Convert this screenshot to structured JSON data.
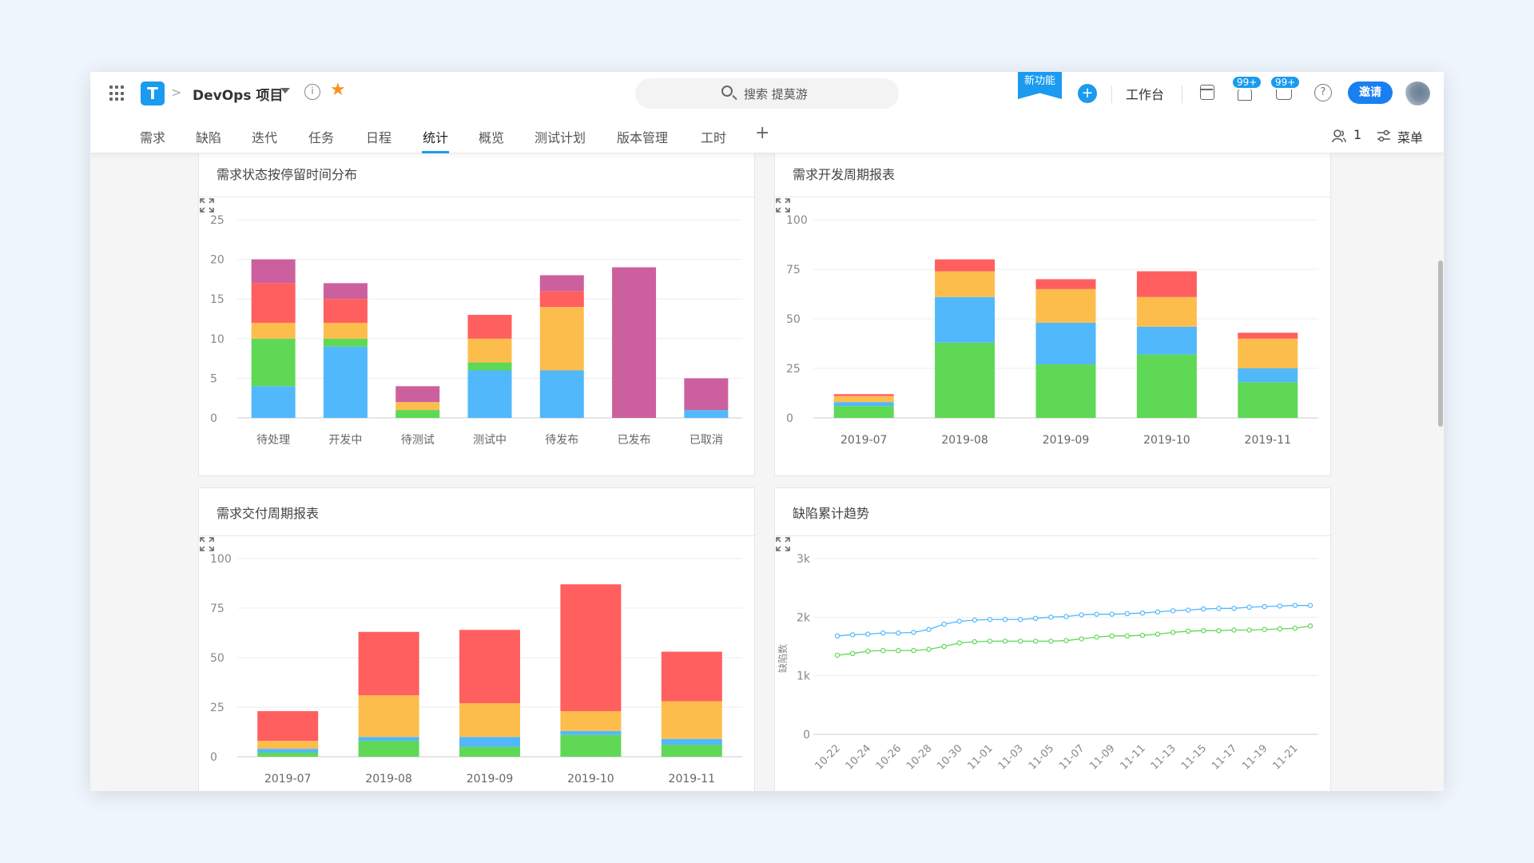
{
  "header": {
    "logo_letter": "T",
    "project_name": "DevOps 项目",
    "search_placeholder": "搜索 提莫游",
    "new_feature": "新功能",
    "workbench": "工作台",
    "notification_badge": "99+",
    "message_badge": "99+",
    "invite": "邀请",
    "crumb_sep": ">",
    "info": "i",
    "help": "?",
    "plus": "+",
    "star": "★"
  },
  "tabs": [
    "需求",
    "缺陷",
    "迭代",
    "任务",
    "日程",
    "统计",
    "概览",
    "测试计划",
    "版本管理",
    "工时"
  ],
  "active_tab": "统计",
  "tab_add": "+",
  "members_count": "1",
  "menu_label": "菜单",
  "colors": {
    "blue": "#51b8fb",
    "green": "#5fd855",
    "orange": "#fdbd4d",
    "red": "#ff5f5f",
    "purple": "#cc609e",
    "accent": "#1a9bf0"
  },
  "panels": [
    {
      "title": "需求状态按停留时间分布",
      "chart_data": {
        "type": "bar",
        "stacked": true,
        "categories": [
          "待处理",
          "开发中",
          "待测试",
          "测试中",
          "待发布",
          "已发布",
          "已取消"
        ],
        "series": [
          {
            "color": "blue",
            "values": [
              4,
              9,
              0,
              6,
              6,
              0,
              1
            ]
          },
          {
            "color": "green",
            "values": [
              6,
              1,
              1,
              1,
              0,
              0,
              0
            ]
          },
          {
            "color": "orange",
            "values": [
              2,
              2,
              1,
              3,
              8,
              0,
              0
            ]
          },
          {
            "color": "red",
            "values": [
              5,
              3,
              0,
              3,
              2,
              0,
              0
            ]
          },
          {
            "color": "purple",
            "values": [
              3,
              2,
              2,
              0,
              2,
              19,
              4
            ]
          }
        ],
        "ylim": [
          0,
          25
        ],
        "yticks": [
          "0",
          "5",
          "10",
          "15",
          "20",
          "25"
        ],
        "grid": true
      }
    },
    {
      "title": "需求开发周期报表",
      "chart_data": {
        "type": "bar",
        "stacked": true,
        "categories": [
          "2019-07",
          "2019-08",
          "2019-09",
          "2019-10",
          "2019-11"
        ],
        "series": [
          {
            "color": "green",
            "values": [
              6,
              38,
              27,
              32,
              18
            ]
          },
          {
            "color": "blue",
            "values": [
              2,
              23,
              21,
              14,
              7
            ]
          },
          {
            "color": "orange",
            "values": [
              3,
              13,
              17,
              15,
              15
            ]
          },
          {
            "color": "red",
            "values": [
              1,
              6,
              5,
              13,
              3
            ]
          }
        ],
        "ylim": [
          0,
          100
        ],
        "yticks": [
          "0",
          "25",
          "50",
          "75",
          "100"
        ],
        "grid": true
      }
    },
    {
      "title": "需求交付周期报表",
      "chart_data": {
        "type": "bar",
        "stacked": true,
        "categories": [
          "2019-07",
          "2019-08",
          "2019-09",
          "2019-10",
          "2019-11"
        ],
        "series": [
          {
            "color": "green",
            "values": [
              2,
              8,
              5,
              11,
              6
            ]
          },
          {
            "color": "blue",
            "values": [
              2,
              2,
              5,
              2,
              3
            ]
          },
          {
            "color": "orange",
            "values": [
              4,
              21,
              17,
              10,
              19
            ]
          },
          {
            "color": "red",
            "values": [
              15,
              32,
              37,
              64,
              25
            ]
          }
        ],
        "ylim": [
          0,
          100
        ],
        "yticks": [
          "0",
          "25",
          "50",
          "75",
          "100"
        ],
        "grid": true
      }
    },
    {
      "title": "缺陷累计趋势",
      "chart_data": {
        "type": "line",
        "ylabel": "缺陷数",
        "x": [
          "10-22",
          "10-23",
          "10-24",
          "10-25",
          "10-26",
          "10-27",
          "10-28",
          "10-29",
          "10-30",
          "10-31",
          "11-01",
          "11-02",
          "11-03",
          "11-04",
          "11-05",
          "11-06",
          "11-07",
          "11-08",
          "11-09",
          "11-10",
          "11-11",
          "11-12",
          "11-13",
          "11-14",
          "11-15",
          "11-16",
          "11-17",
          "11-18",
          "11-19",
          "11-20",
          "11-21",
          "11-22"
        ],
        "xticks": [
          "10-22",
          "10-24",
          "10-26",
          "10-28",
          "10-30",
          "11-01",
          "11-03",
          "11-05",
          "11-07",
          "11-09",
          "11-11",
          "11-13",
          "11-15",
          "11-17",
          "11-19",
          "11-21"
        ],
        "series": [
          {
            "color": "blue",
            "values": [
              1680,
              1700,
              1710,
              1730,
              1730,
              1740,
              1790,
              1880,
              1930,
              1950,
              1960,
              1960,
              1960,
              1980,
              2000,
              2010,
              2040,
              2050,
              2050,
              2060,
              2070,
              2090,
              2110,
              2120,
              2140,
              2150,
              2150,
              2170,
              2180,
              2190,
              2200,
              2200
            ]
          },
          {
            "color": "green",
            "values": [
              1350,
              1380,
              1420,
              1430,
              1430,
              1430,
              1450,
              1500,
              1560,
              1580,
              1590,
              1590,
              1590,
              1590,
              1590,
              1600,
              1630,
              1660,
              1680,
              1680,
              1690,
              1710,
              1740,
              1760,
              1770,
              1770,
              1780,
              1780,
              1790,
              1800,
              1810,
              1850
            ]
          }
        ],
        "ylim": [
          0,
          3000
        ],
        "yticks": [
          "0",
          "1k",
          "2k",
          "3k"
        ],
        "grid": true
      }
    }
  ]
}
